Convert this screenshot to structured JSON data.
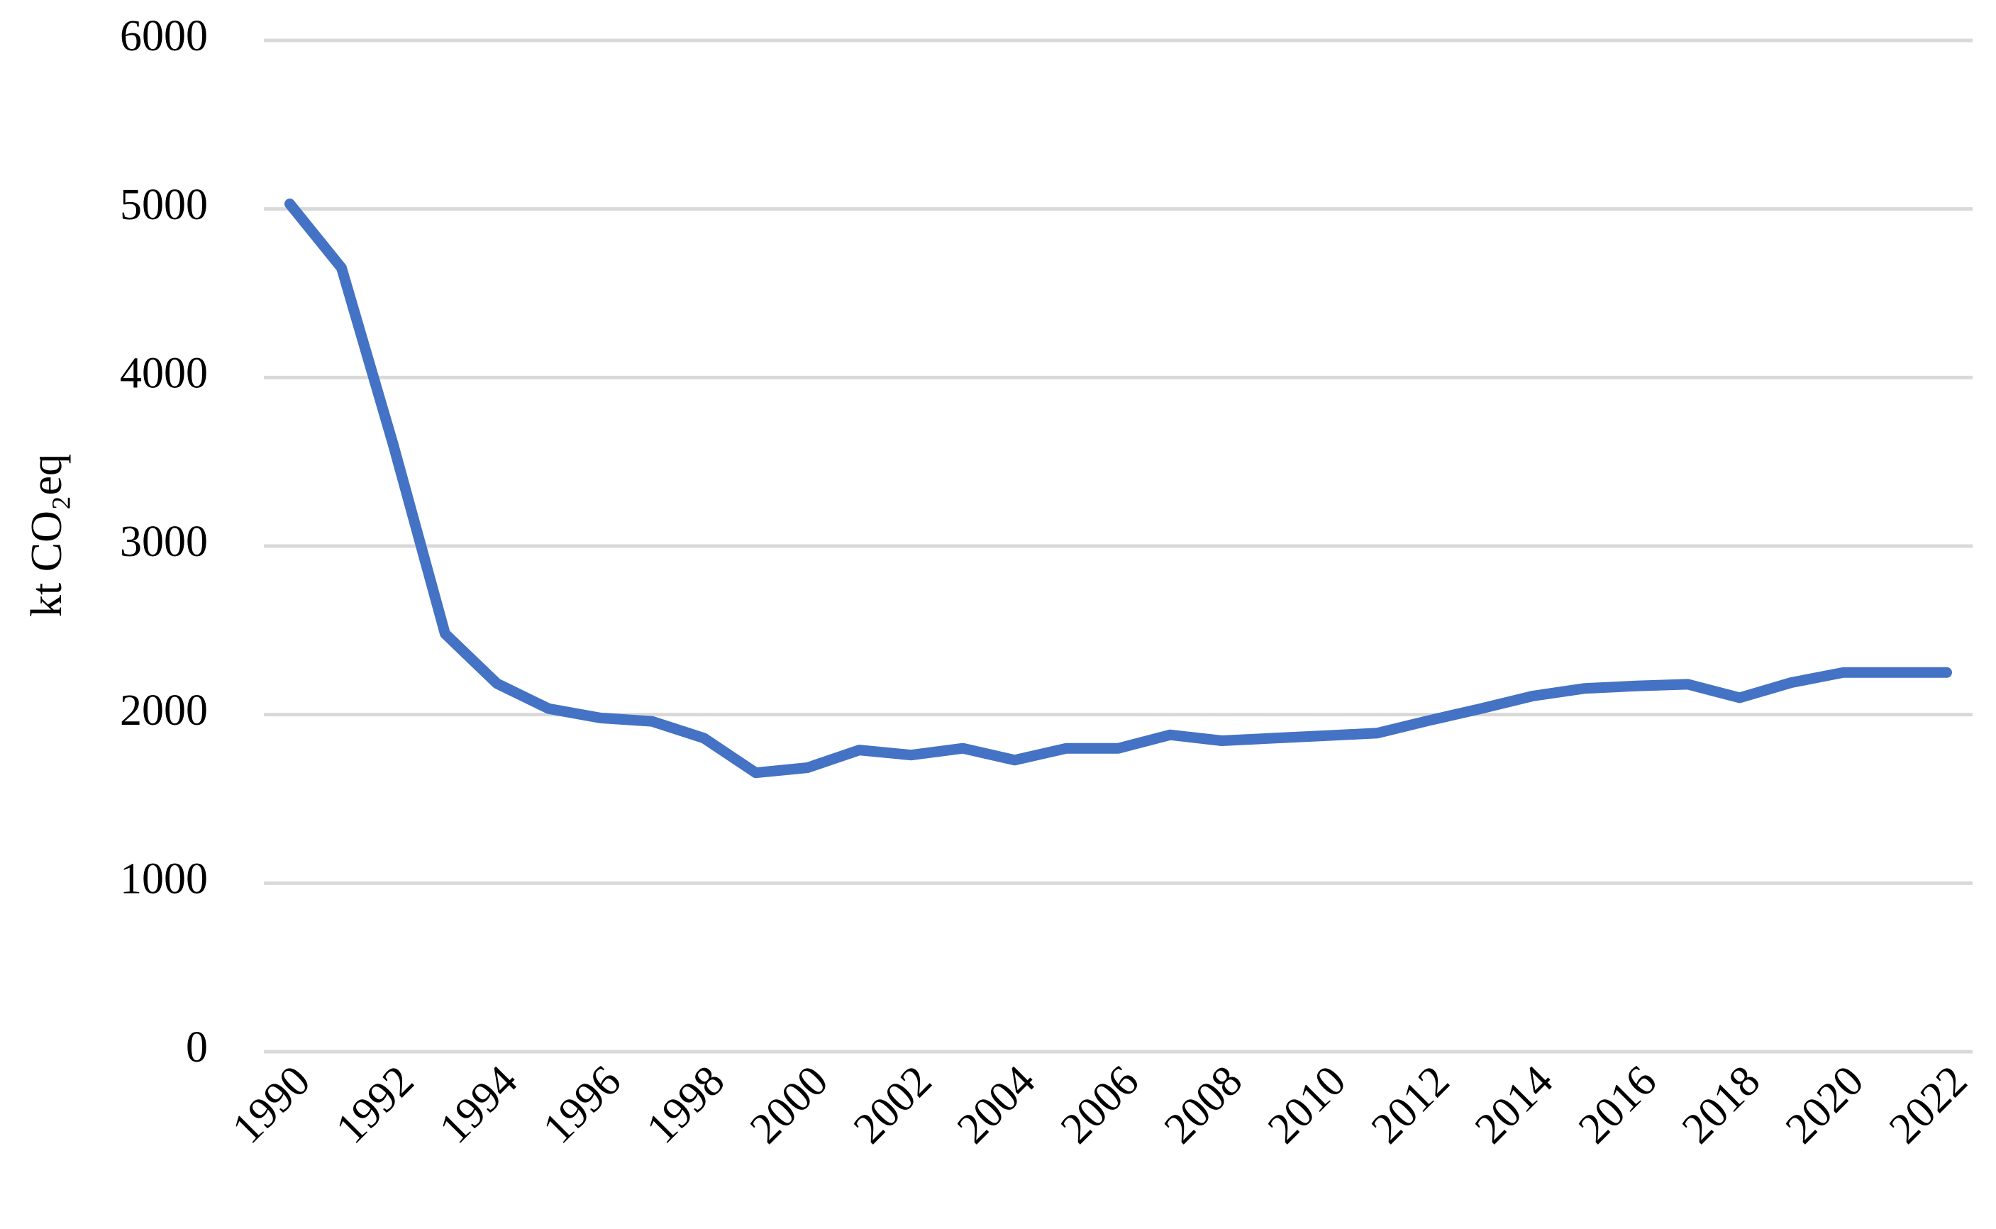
{
  "chart_data": {
    "type": "line",
    "y_label": "kt CO₂eq",
    "categories": [
      "1990",
      null,
      "1992",
      null,
      "1994",
      null,
      "1996",
      null,
      "1998",
      null,
      "2000",
      null,
      "2002",
      null,
      "2004",
      null,
      "2006",
      null,
      "2008",
      null,
      "2010",
      null,
      "2012",
      null,
      "2014",
      null,
      "2016",
      null,
      "2018",
      null,
      "2020",
      null,
      "2022"
    ],
    "series": [
      {
        "color": "#4472c4",
        "values": [
          5030,
          4650,
          3600,
          2480,
          2185,
          2035,
          1980,
          1960,
          1860,
          1655,
          1685,
          1790,
          1760,
          1800,
          1730,
          1800,
          1800,
          1880,
          1845,
          1860,
          1875,
          1890,
          1965,
          2035,
          2110,
          2155,
          2170,
          2180,
          2100,
          2190,
          2250,
          2250,
          2250
        ]
      }
    ],
    "ylim": [
      0,
      6000
    ],
    "yticks": [
      0,
      1000,
      2000,
      3000,
      4000,
      5000,
      6000
    ],
    "grid": true
  }
}
